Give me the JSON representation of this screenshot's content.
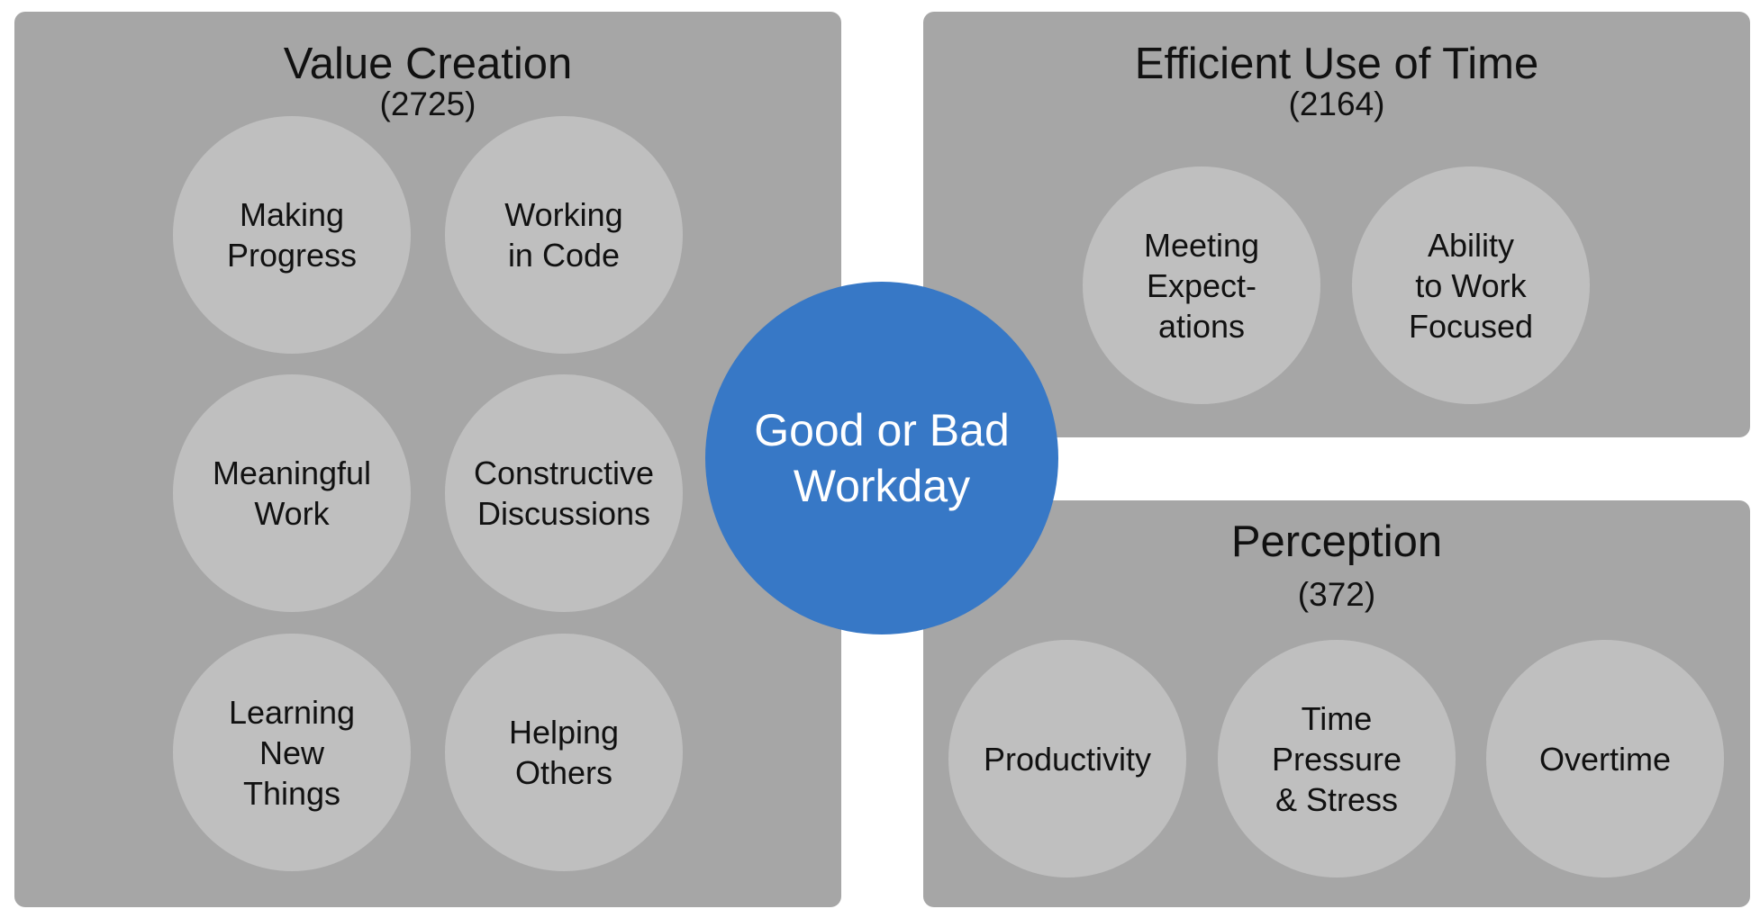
{
  "center": {
    "label": "Good or Bad\nWorkday",
    "color": "#3778c6"
  },
  "panels": [
    {
      "title": "Value Creation",
      "count": "(2725)",
      "items": [
        "Making\nProgress",
        "Working\nin Code",
        "Meaningful\nWork",
        "Constructive\nDiscussions",
        "Learning\nNew\nThings",
        "Helping\nOthers"
      ]
    },
    {
      "title": "Efficient Use of Time",
      "count": "(2164)",
      "items": [
        "Meeting\nExpect-\nations",
        "Ability\nto Work\nFocused"
      ]
    },
    {
      "title": "Perception",
      "count": "(372)",
      "items": [
        "Productivity",
        "Time\nPressure\n& Stress",
        "Overtime"
      ]
    }
  ]
}
